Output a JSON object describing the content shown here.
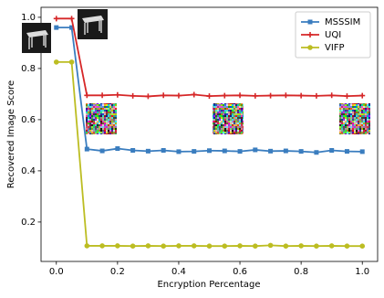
{
  "chart_data": {
    "type": "line",
    "x_label": "Encryption Percentage",
    "y_label": "Recovered Image Score",
    "x": [
      0,
      0.05,
      0.1,
      0.15,
      0.2,
      0.25,
      0.3,
      0.35,
      0.4,
      0.45,
      0.5,
      0.55,
      0.6,
      0.65,
      0.7,
      0.75,
      0.8,
      0.85,
      0.9,
      0.95,
      1.0
    ],
    "series": [
      {
        "name": "MSSSIM",
        "color": "#3a7dbf",
        "marker": "square",
        "values": [
          0.96,
          0.96,
          0.485,
          0.478,
          0.487,
          0.48,
          0.477,
          0.48,
          0.475,
          0.476,
          0.479,
          0.478,
          0.476,
          0.482,
          0.477,
          0.478,
          0.476,
          0.472,
          0.48,
          0.476,
          0.475
        ]
      },
      {
        "name": "UQI",
        "color": "#d62728",
        "marker": "plus",
        "values": [
          0.995,
          0.995,
          0.695,
          0.695,
          0.697,
          0.693,
          0.691,
          0.695,
          0.694,
          0.698,
          0.692,
          0.694,
          0.695,
          0.693,
          0.694,
          0.695,
          0.694,
          0.693,
          0.695,
          0.692,
          0.694
        ]
      },
      {
        "name": "VIFP",
        "color": "#bcbd22",
        "marker": "circle",
        "values": [
          0.825,
          0.825,
          0.107,
          0.107,
          0.107,
          0.106,
          0.107,
          0.106,
          0.107,
          0.107,
          0.106,
          0.106,
          0.107,
          0.106,
          0.109,
          0.106,
          0.107,
          0.106,
          0.107,
          0.106,
          0.106
        ]
      }
    ],
    "xlim": [
      -0.05,
      1.05
    ],
    "ylim": [
      0.046,
      1.039
    ],
    "xticks": [
      {
        "value": 0,
        "label": "0.0"
      },
      0.2,
      0.4,
      0.6,
      0.8,
      {
        "value": 1,
        "label": "1.0"
      }
    ],
    "yticks": [
      0.2,
      0.4,
      0.6,
      0.8,
      {
        "value": 1,
        "label": "1.0"
      }
    ],
    "legend": "upper right"
  }
}
